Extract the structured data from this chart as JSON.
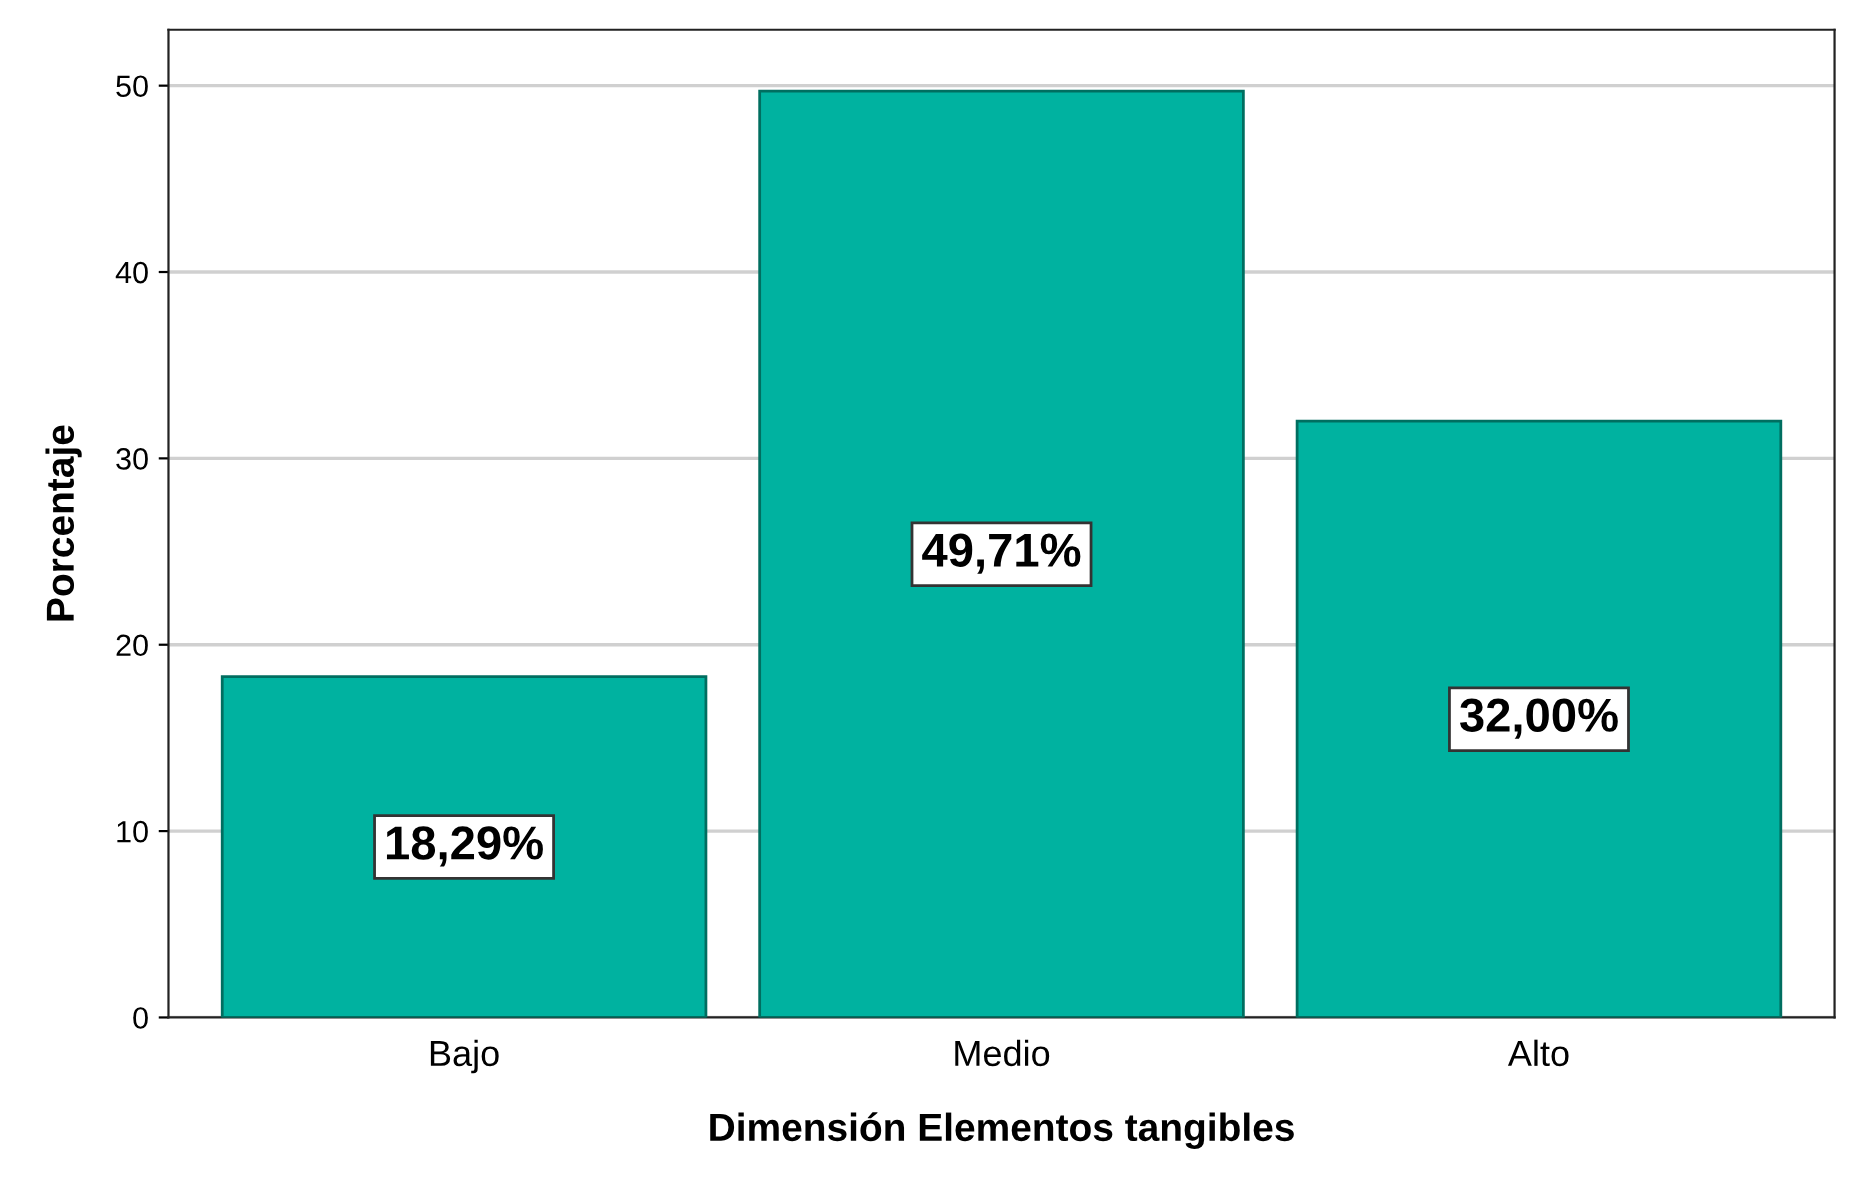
{
  "chart_data": {
    "type": "bar",
    "xlabel": "Dimensión Elementos tangibles",
    "ylabel": "Porcentaje",
    "categories": [
      "Bajo",
      "Medio",
      "Alto"
    ],
    "values": [
      18.29,
      49.71,
      32.0
    ],
    "value_labels": [
      "18,29%",
      "49,71%",
      "32,00%"
    ],
    "color": "#00b2a0",
    "ylim": [
      0,
      53
    ],
    "yticks": [
      0,
      10,
      20,
      30,
      40,
      50
    ],
    "grid": "y"
  }
}
